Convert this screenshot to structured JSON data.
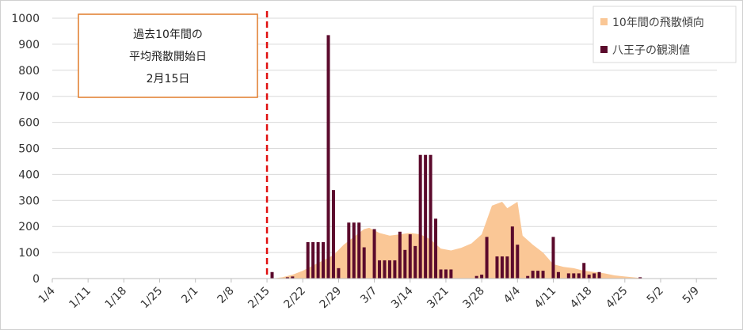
{
  "chart_data": {
    "type": "bar",
    "ylim": [
      0,
      1000
    ],
    "yticks": [
      0,
      100,
      200,
      300,
      400,
      500,
      600,
      700,
      800,
      900,
      1000
    ],
    "x_range_dates": [
      "2020-01-04",
      "2020-05-13"
    ],
    "xtick_dates": [
      "2020-01-04",
      "2020-01-11",
      "2020-01-18",
      "2020-01-25",
      "2020-02-01",
      "2020-02-08",
      "2020-02-15",
      "2020-02-22",
      "2020-02-29",
      "2020-03-07",
      "2020-03-14",
      "2020-03-21",
      "2020-03-28",
      "2020-04-04",
      "2020-04-11",
      "2020-04-18",
      "2020-04-25",
      "2020-05-02",
      "2020-05-09"
    ],
    "xtick_labels": [
      "1/4",
      "1/11",
      "1/18",
      "1/25",
      "2/1",
      "2/8",
      "2/15",
      "2/22",
      "2/29",
      "3/7",
      "3/14",
      "3/21",
      "3/28",
      "4/4",
      "4/11",
      "4/18",
      "4/25",
      "5/2",
      "5/9"
    ],
    "grid": true,
    "legend_position": "top-right",
    "area_series": {
      "name": "10年間の飛散傾向",
      "color": "#fac796",
      "points": [
        [
          "2020-02-16",
          0
        ],
        [
          "2020-02-18",
          5
        ],
        [
          "2020-02-20",
          15
        ],
        [
          "2020-02-22",
          30
        ],
        [
          "2020-02-24",
          50
        ],
        [
          "2020-02-26",
          70
        ],
        [
          "2020-02-28",
          90
        ],
        [
          "2020-03-01",
          130
        ],
        [
          "2020-03-03",
          160
        ],
        [
          "2020-03-05",
          190
        ],
        [
          "2020-03-06",
          195
        ],
        [
          "2020-03-08",
          175
        ],
        [
          "2020-03-10",
          165
        ],
        [
          "2020-03-12",
          170
        ],
        [
          "2020-03-14",
          175
        ],
        [
          "2020-03-16",
          170
        ],
        [
          "2020-03-18",
          150
        ],
        [
          "2020-03-20",
          115
        ],
        [
          "2020-03-22",
          108
        ],
        [
          "2020-03-24",
          118
        ],
        [
          "2020-03-26",
          135
        ],
        [
          "2020-03-28",
          170
        ],
        [
          "2020-03-30",
          280
        ],
        [
          "2020-04-01",
          295
        ],
        [
          "2020-04-02",
          270
        ],
        [
          "2020-04-04",
          295
        ],
        [
          "2020-04-05",
          165
        ],
        [
          "2020-04-07",
          130
        ],
        [
          "2020-04-09",
          100
        ],
        [
          "2020-04-11",
          55
        ],
        [
          "2020-04-13",
          45
        ],
        [
          "2020-04-15",
          40
        ],
        [
          "2020-04-17",
          30
        ],
        [
          "2020-04-19",
          25
        ],
        [
          "2020-04-21",
          20
        ],
        [
          "2020-04-23",
          12
        ],
        [
          "2020-04-25",
          8
        ],
        [
          "2020-04-27",
          4
        ],
        [
          "2020-04-29",
          0
        ]
      ]
    },
    "bar_series": {
      "name": "八王子の観測値",
      "color": "#5b0a2c",
      "points": [
        [
          "2020-02-16",
          25
        ],
        [
          "2020-02-19",
          5
        ],
        [
          "2020-02-20",
          8
        ],
        [
          "2020-02-23",
          140
        ],
        [
          "2020-02-24",
          140
        ],
        [
          "2020-02-25",
          140
        ],
        [
          "2020-02-26",
          140
        ],
        [
          "2020-02-27",
          935
        ],
        [
          "2020-02-28",
          340
        ],
        [
          "2020-02-29",
          40
        ],
        [
          "2020-03-02",
          215
        ],
        [
          "2020-03-03",
          215
        ],
        [
          "2020-03-04",
          215
        ],
        [
          "2020-03-05",
          120
        ],
        [
          "2020-03-07",
          190
        ],
        [
          "2020-03-08",
          70
        ],
        [
          "2020-03-09",
          70
        ],
        [
          "2020-03-10",
          70
        ],
        [
          "2020-03-11",
          70
        ],
        [
          "2020-03-12",
          180
        ],
        [
          "2020-03-13",
          110
        ],
        [
          "2020-03-14",
          170
        ],
        [
          "2020-03-15",
          125
        ],
        [
          "2020-03-16",
          475
        ],
        [
          "2020-03-17",
          475
        ],
        [
          "2020-03-18",
          475
        ],
        [
          "2020-03-19",
          230
        ],
        [
          "2020-03-20",
          35
        ],
        [
          "2020-03-21",
          35
        ],
        [
          "2020-03-22",
          35
        ],
        [
          "2020-03-27",
          10
        ],
        [
          "2020-03-28",
          15
        ],
        [
          "2020-03-29",
          160
        ],
        [
          "2020-03-31",
          85
        ],
        [
          "2020-04-01",
          85
        ],
        [
          "2020-04-02",
          85
        ],
        [
          "2020-04-03",
          200
        ],
        [
          "2020-04-04",
          130
        ],
        [
          "2020-04-06",
          10
        ],
        [
          "2020-04-07",
          30
        ],
        [
          "2020-04-08",
          30
        ],
        [
          "2020-04-09",
          30
        ],
        [
          "2020-04-11",
          160
        ],
        [
          "2020-04-12",
          25
        ],
        [
          "2020-04-14",
          20
        ],
        [
          "2020-04-15",
          20
        ],
        [
          "2020-04-16",
          20
        ],
        [
          "2020-04-17",
          60
        ],
        [
          "2020-04-18",
          15
        ],
        [
          "2020-04-19",
          20
        ],
        [
          "2020-04-20",
          25
        ],
        [
          "2020-04-28",
          5
        ]
      ]
    },
    "reference_line": {
      "date": "2020-02-15",
      "color": "#e01010",
      "style": "dashed"
    },
    "annotation": {
      "lines": [
        "過去10年間の",
        "平均飛散開始日",
        "2月15日"
      ],
      "border_color": "#e07b2a"
    }
  }
}
